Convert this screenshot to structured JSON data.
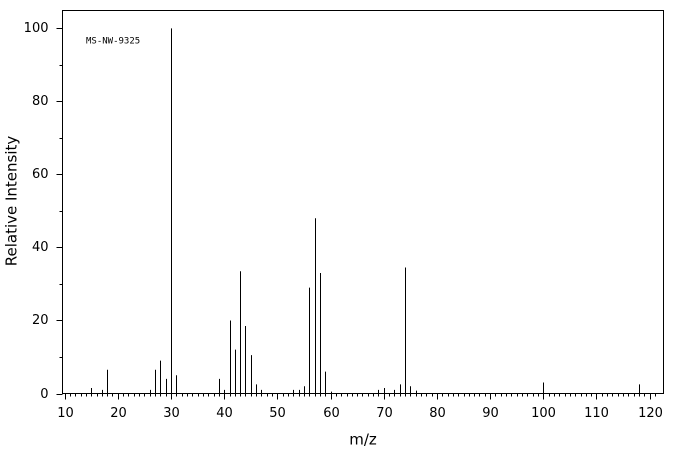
{
  "chart_data": {
    "type": "stem",
    "annotation": "MS-NW-9325",
    "xlabel": "m/z",
    "ylabel": "Relative Intensity",
    "x": [
      15,
      17,
      18,
      26,
      27,
      28,
      29,
      30,
      31,
      39,
      40,
      41,
      42,
      43,
      44,
      45,
      46,
      47,
      53,
      54,
      55,
      56,
      57,
      58,
      59,
      60,
      69,
      70,
      72,
      73,
      74,
      75,
      76,
      100,
      118
    ],
    "values": [
      1.5,
      1,
      6.5,
      1,
      6.5,
      9,
      4,
      100,
      5,
      4,
      1,
      20,
      12,
      33.5,
      18.5,
      10.5,
      2.5,
      1,
      1,
      1,
      2,
      29,
      48,
      33,
      6,
      0.5,
      1,
      1.5,
      1,
      2.5,
      34.5,
      2,
      0.8,
      3,
      2.5
    ],
    "color": "#000000",
    "xlim": [
      9.6,
      122.6
    ],
    "ylim": [
      0,
      104.9
    ],
    "xticks": [
      10,
      20,
      30,
      40,
      50,
      60,
      70,
      80,
      90,
      100,
      110,
      120
    ],
    "yticks": [
      0,
      20,
      40,
      60,
      80,
      100
    ],
    "xminorticks": [
      11,
      12,
      13,
      14,
      15,
      16,
      17,
      18,
      19,
      21,
      22,
      23,
      24,
      25,
      26,
      27,
      28,
      29,
      31,
      32,
      33,
      34,
      35,
      36,
      37,
      38,
      39,
      41,
      42,
      43,
      44,
      45,
      46,
      47,
      48,
      49,
      51,
      52,
      53,
      54,
      55,
      56,
      57,
      58,
      59,
      61,
      62,
      63,
      64,
      65,
      66,
      67,
      68,
      69,
      71,
      72,
      73,
      74,
      75,
      76,
      77,
      78,
      79,
      81,
      82,
      83,
      84,
      85,
      86,
      87,
      88,
      89,
      91,
      92,
      93,
      94,
      95,
      96,
      97,
      98,
      99,
      101,
      102,
      103,
      104,
      105,
      106,
      107,
      108,
      109,
      111,
      112,
      113,
      114,
      115,
      116,
      117,
      118,
      119,
      121
    ],
    "yminorticks": [
      10,
      30,
      50,
      70,
      90
    ]
  }
}
